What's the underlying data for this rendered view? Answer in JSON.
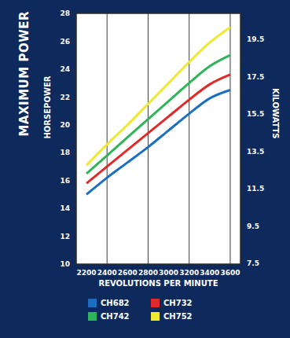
{
  "chart_data": {
    "type": "line",
    "title": "MAXIMUM POWER",
    "x_label": "REVOLUTIONS PER MINUTE",
    "y_label": "HORSEPOWER",
    "y2_label": "KILOWATTS",
    "x": [
      2200,
      2400,
      2600,
      2800,
      3000,
      3200,
      3400,
      3600
    ],
    "xlim": [
      2100,
      3700
    ],
    "xticks": [
      2200,
      2400,
      2600,
      2800,
      3000,
      3200,
      3400,
      3600
    ],
    "ylim": [
      10,
      28
    ],
    "yticks": [
      10,
      12,
      14,
      16,
      18,
      20,
      22,
      24,
      26,
      28
    ],
    "y2lim": [
      7.46,
      20.88
    ],
    "y2ticks": [
      7.5,
      9.5,
      11.5,
      13.5,
      15.5,
      17.5,
      19.5
    ],
    "grid": true,
    "legend": "bottom",
    "series": [
      {
        "name": "CH682",
        "color": "#1a6fc0",
        "values": [
          15.0,
          16.2,
          17.3,
          18.4,
          19.6,
          20.8,
          21.9,
          22.5
        ]
      },
      {
        "name": "CH732",
        "color": "#e02a2a",
        "values": [
          15.8,
          17.0,
          18.2,
          19.4,
          20.6,
          21.8,
          22.9,
          23.6
        ]
      },
      {
        "name": "CH742",
        "color": "#2fb45a",
        "values": [
          16.5,
          17.8,
          19.1,
          20.4,
          21.7,
          23.0,
          24.2,
          25.0
        ]
      },
      {
        "name": "CH752",
        "color": "#f0e830",
        "values": [
          17.1,
          18.6,
          20.0,
          21.5,
          23.0,
          24.5,
          25.9,
          27.0
        ]
      }
    ]
  }
}
